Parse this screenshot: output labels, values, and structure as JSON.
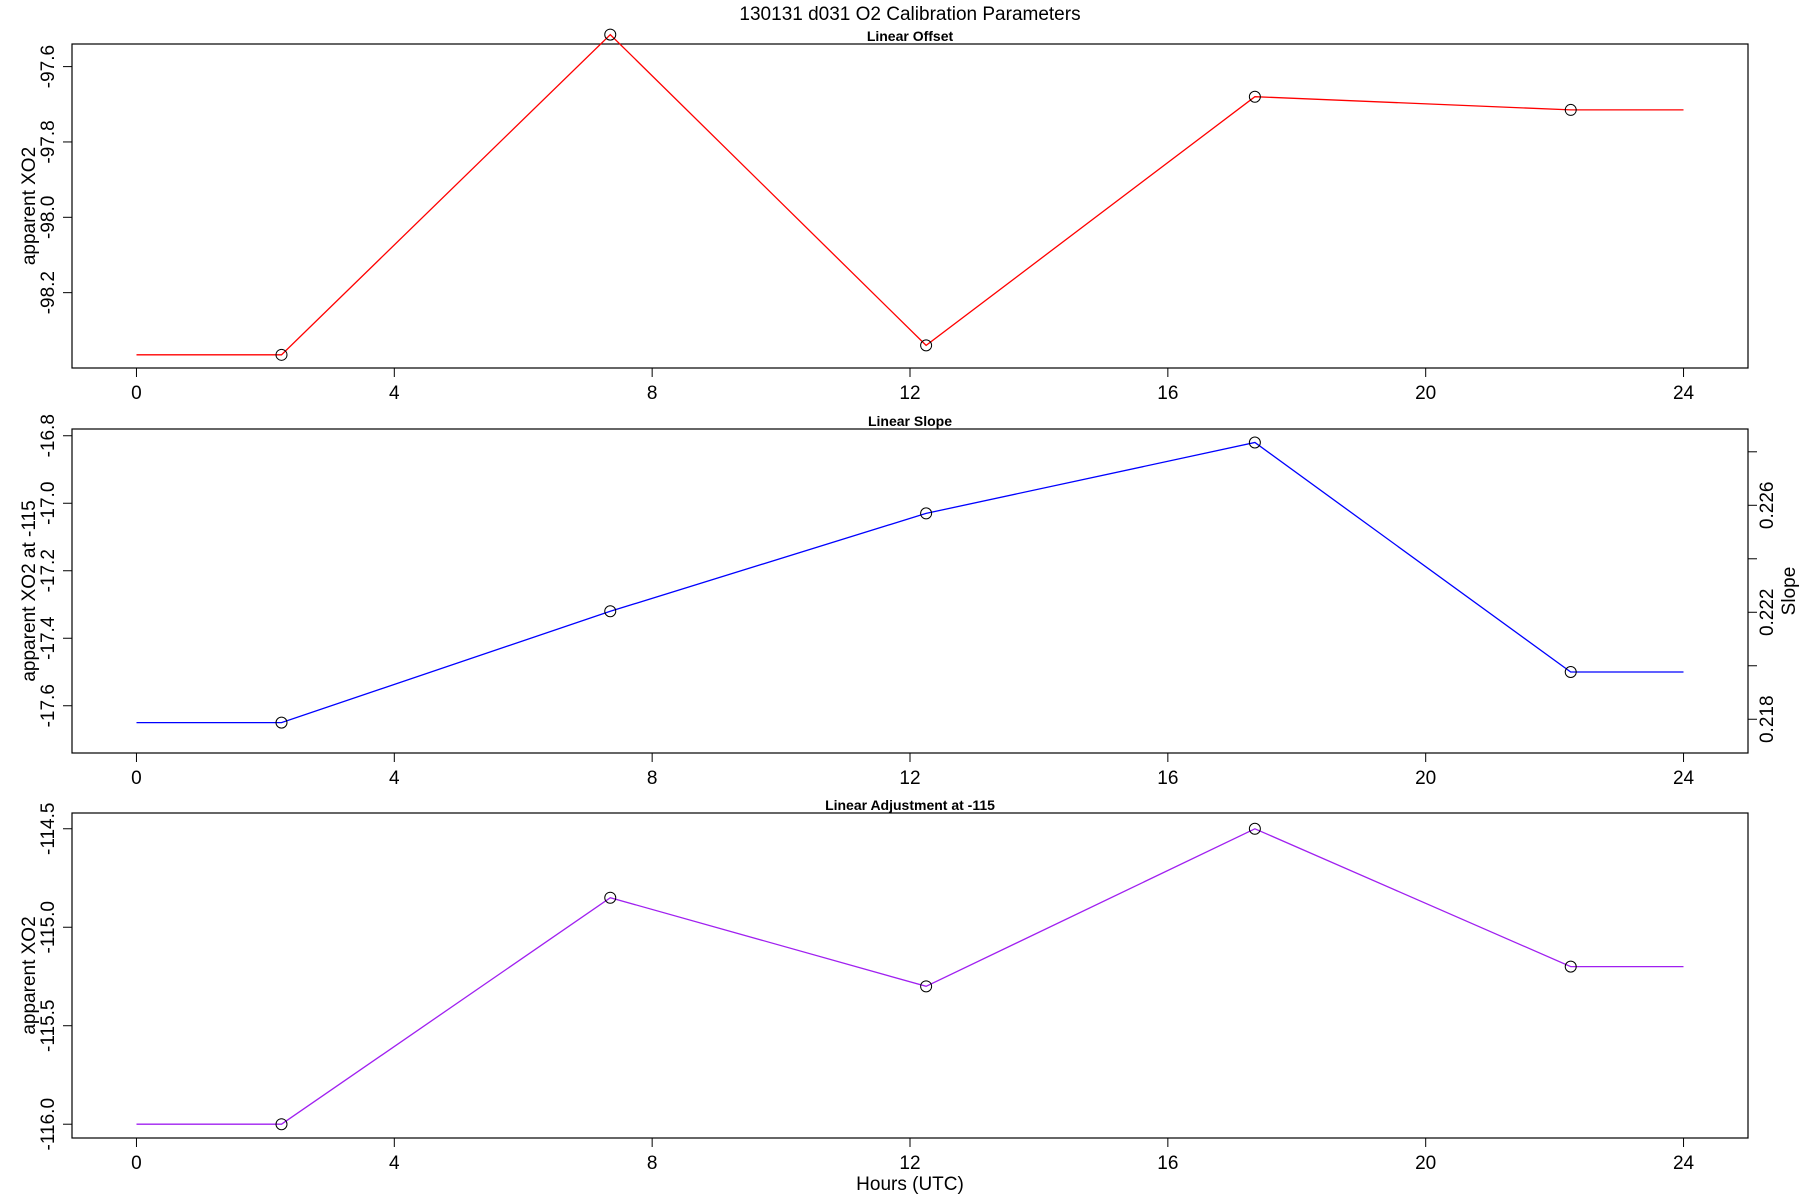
{
  "figure": {
    "title": "130131   d031   O2 Calibration Parameters",
    "xlabel": "Hours (UTC)"
  },
  "chart_data": [
    {
      "type": "line",
      "title": "Linear Offset",
      "xlabel": "",
      "ylabel": "apparent XO2",
      "xlim": [
        -1.0,
        25.0
      ],
      "ylim": [
        -98.4,
        -97.54
      ],
      "xticks": [
        0,
        4,
        8,
        12,
        16,
        20,
        24
      ],
      "yticks": [
        -98.2,
        -98.0,
        -97.8,
        -97.6
      ],
      "ytick_labels": [
        "-98.2",
        "-98.0",
        "-97.8",
        "-97.6"
      ],
      "color": "#ff0000",
      "x": [
        0,
        2.25,
        7.35,
        12.25,
        17.35,
        22.25,
        24
      ],
      "y": [
        -98.365,
        -98.365,
        -97.515,
        -98.34,
        -97.68,
        -97.715,
        -97.715
      ],
      "markers": [
        [
          2.25,
          -98.365
        ],
        [
          7.35,
          -97.515
        ],
        [
          12.25,
          -98.34
        ],
        [
          17.35,
          -97.68
        ],
        [
          22.25,
          -97.715
        ]
      ],
      "grid": false,
      "legend": "none"
    },
    {
      "type": "line",
      "title": "Linear Slope",
      "xlabel": "",
      "ylabel": "apparent XO2 at -115",
      "y2label": "Slope",
      "xlim": [
        -1.0,
        25.0
      ],
      "ylim": [
        -17.74,
        -16.78
      ],
      "xticks": [
        0,
        4,
        8,
        12,
        16,
        20,
        24
      ],
      "yticks": [
        -17.6,
        -17.4,
        -17.2,
        -17.0,
        -16.8
      ],
      "ytick_labels": [
        "-17.6",
        "-17.4",
        "-17.2",
        "-17.0",
        "-16.8"
      ],
      "y2ticks": [
        0.218,
        0.22,
        0.222,
        0.224,
        0.226,
        0.228
      ],
      "y2tick_labels": [
        "0.218",
        "",
        "0.222",
        "",
        "0.226",
        ""
      ],
      "y2_map": {
        "y": [
          -17.64,
          -16.8
        ],
        "y2": [
          0.218,
          0.2286
        ]
      },
      "color": "#0000ff",
      "x": [
        0,
        2.25,
        7.35,
        12.25,
        17.35,
        22.25,
        24
      ],
      "y": [
        -17.65,
        -17.65,
        -17.32,
        -17.03,
        -16.82,
        -17.5,
        -17.5
      ],
      "markers": [
        [
          2.25,
          -17.65
        ],
        [
          7.35,
          -17.32
        ],
        [
          12.25,
          -17.03
        ],
        [
          17.35,
          -16.82
        ],
        [
          22.25,
          -17.5
        ]
      ],
      "grid": false,
      "legend": "none"
    },
    {
      "type": "line",
      "title": "Linear Adjustment at -115",
      "xlabel": "",
      "ylabel": "apparent XO2",
      "xlim": [
        -1.0,
        25.0
      ],
      "ylim": [
        -116.07,
        -114.42
      ],
      "xticks": [
        0,
        4,
        8,
        12,
        16,
        20,
        24
      ],
      "yticks": [
        -116.0,
        -115.5,
        -115.0,
        -114.5
      ],
      "ytick_labels": [
        "-116.0",
        "-115.5",
        "-115.0",
        "-114.5"
      ],
      "color": "#a020f0",
      "x": [
        0,
        2.25,
        7.35,
        12.25,
        17.35,
        22.25,
        24
      ],
      "y": [
        -116.0,
        -116.0,
        -114.85,
        -115.3,
        -114.5,
        -115.2,
        -115.2
      ],
      "markers": [
        [
          2.25,
          -116.0
        ],
        [
          7.35,
          -114.85
        ],
        [
          12.25,
          -115.3
        ],
        [
          17.35,
          -114.5
        ],
        [
          22.25,
          -115.2
        ]
      ],
      "grid": false,
      "legend": "none"
    }
  ]
}
